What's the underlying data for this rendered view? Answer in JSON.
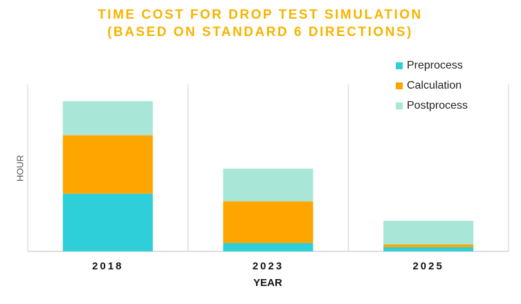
{
  "chart_data": {
    "type": "stacked_bar",
    "title": [
      "TIME COST FOR DROP TEST SIMULATION",
      "(BASED ON STANDARD 6 DIRECTIONS)"
    ],
    "x_label": "YEAR",
    "y_label": "HOUR",
    "categories": [
      "2018",
      "2023",
      "2025"
    ],
    "series": [
      {
        "name": "Preprocess",
        "color": "#2ecfd8",
        "values": [
          83,
          12,
          6
        ]
      },
      {
        "name": "Calculation",
        "color": "#ffa500",
        "values": [
          84,
          60,
          4
        ]
      },
      {
        "name": "Postprocess",
        "color": "#a8e6d8",
        "values": [
          49,
          47,
          34
        ]
      }
    ],
    "ylim": [
      0,
      240
    ],
    "legend": "top-right"
  }
}
